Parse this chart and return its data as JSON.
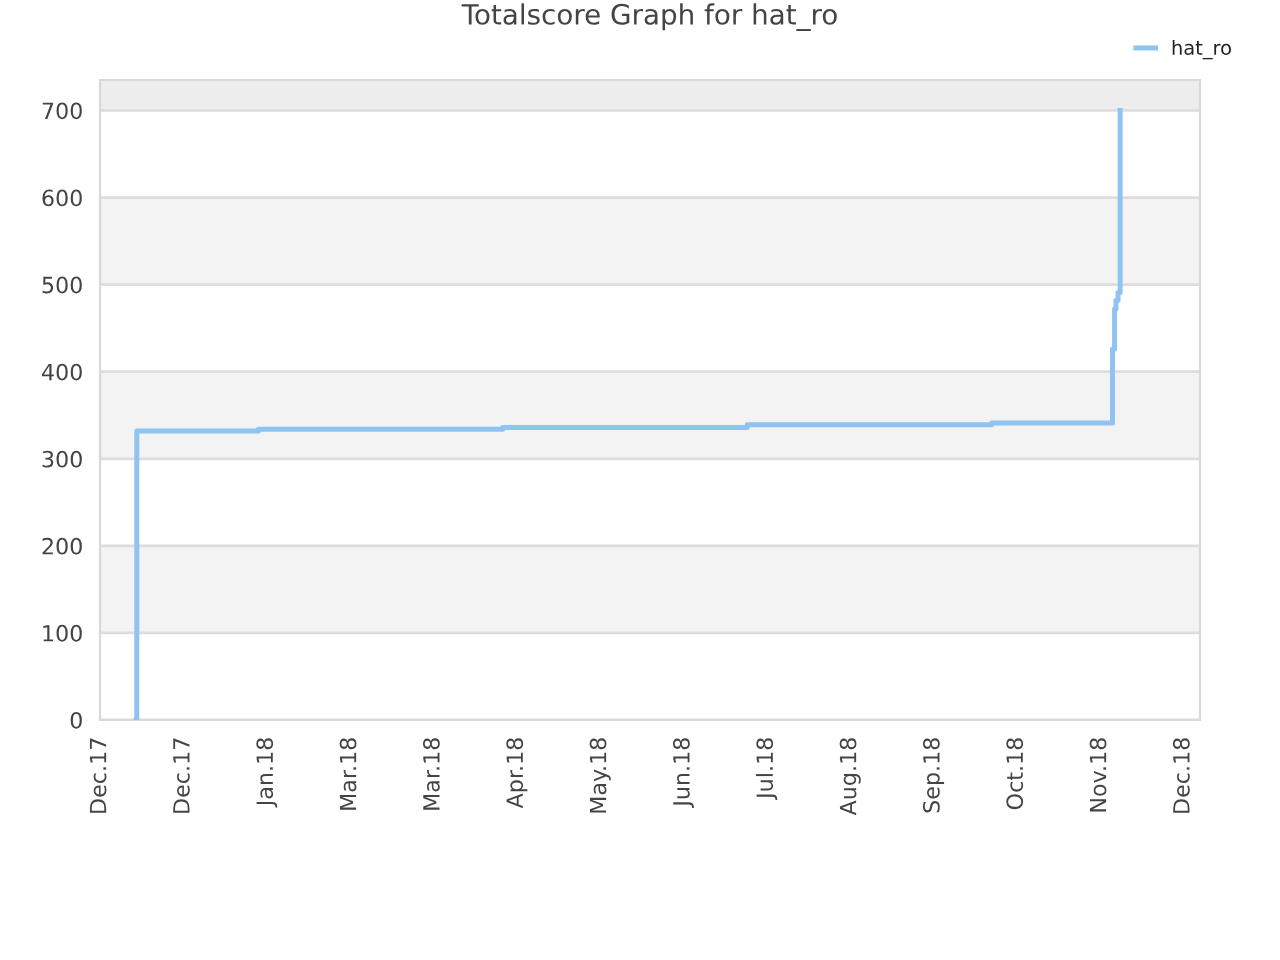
{
  "chart_data": {
    "type": "step",
    "title": "Totalscore Graph for hat_ro",
    "x": [
      "2017-12-14T00:00",
      "2017-12-14T06:00",
      "2018-01-27",
      "2018-04-25",
      "2018-07-22",
      "2018-10-18",
      "2018-11-30T12:00",
      "2018-12-01T06:00",
      "2018-12-01T18:00",
      "2018-12-02T12:00",
      "2018-12-03T06:00"
    ],
    "series": [
      {
        "name": "hat_ro",
        "color": "#8ec3f2",
        "values": [
          0,
          332,
          334,
          336,
          339,
          341,
          426,
          472,
          482,
          491,
          700
        ]
      }
    ],
    "xlim": [
      "2017-12-01",
      "2019-01-01"
    ],
    "xticks": [
      {
        "value": "2017-12-01",
        "label": "Dec.17"
      },
      {
        "value": "2017-12-31",
        "label": "Dec.17"
      },
      {
        "value": "2018-01-30",
        "label": "Jan.18"
      },
      {
        "value": "2018-03-01",
        "label": "Mar.18"
      },
      {
        "value": "2018-03-31",
        "label": "Mar.18"
      },
      {
        "value": "2018-04-30",
        "label": "Apr.18"
      },
      {
        "value": "2018-05-30",
        "label": "May.18"
      },
      {
        "value": "2018-06-29",
        "label": "Jun.18"
      },
      {
        "value": "2018-07-29",
        "label": "Jul.18"
      },
      {
        "value": "2018-08-28",
        "label": "Aug.18"
      },
      {
        "value": "2018-09-27",
        "label": "Sep.18"
      },
      {
        "value": "2018-10-27",
        "label": "Oct.18"
      },
      {
        "value": "2018-11-26",
        "label": "Nov.18"
      },
      {
        "value": "2018-12-26",
        "label": "Dec.18"
      }
    ],
    "ylim": [
      0,
      735
    ],
    "yticks": [
      0,
      100,
      200,
      300,
      400,
      500,
      600,
      700
    ],
    "bands": [
      {
        "axis": "y",
        "from": 100,
        "to": 200,
        "color": "#f3f3f3"
      },
      {
        "axis": "y",
        "from": 300,
        "to": 400,
        "color": "#f3f3f3"
      },
      {
        "axis": "y",
        "from": 500,
        "to": 600,
        "color": "#f3f3f3"
      },
      {
        "axis": "y",
        "from": 700,
        "to": 735,
        "color": "#ededed"
      }
    ],
    "grid": "y",
    "legend": "top right",
    "marker": "none",
    "line_style": "solid"
  }
}
